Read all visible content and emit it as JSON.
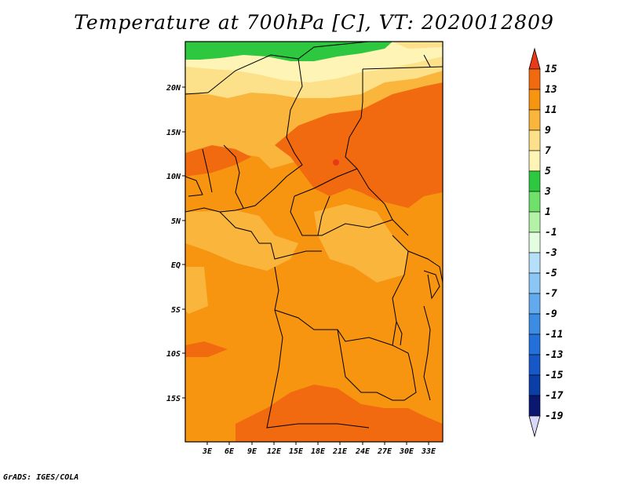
{
  "title": "Temperature at 700hPa [C], VT: 2020012809",
  "footer": "GrADS: IGES/COLA",
  "map": {
    "lat_labels": [
      "20N",
      "15N",
      "10N",
      "5N",
      "EQ",
      "5S",
      "10S",
      "15S"
    ],
    "lon_labels": [
      "3E",
      "6E",
      "9E",
      "12E",
      "15E",
      "18E",
      "21E",
      "24E",
      "27E",
      "30E",
      "33E"
    ]
  },
  "colorbar": {
    "levels": [
      "15",
      "13",
      "11",
      "9",
      "7",
      "5",
      "3",
      "1",
      "-1",
      "-3",
      "-5",
      "-7",
      "-9",
      "-11",
      "-13",
      "-15",
      "-17",
      "-19"
    ],
    "colors": [
      "#e83a16",
      "#f26a0f",
      "#f79410",
      "#fab53c",
      "#fde08a",
      "#fdf4b5",
      "#2ec840",
      "#6fe06a",
      "#b4f2a8",
      "#e2fde0",
      "#b6e0fa",
      "#8cc6f4",
      "#62aaee",
      "#3c8ce4",
      "#2470da",
      "#1658c8",
      "#0c3ea8",
      "#0a1870",
      "#d8d8f8"
    ]
  }
}
